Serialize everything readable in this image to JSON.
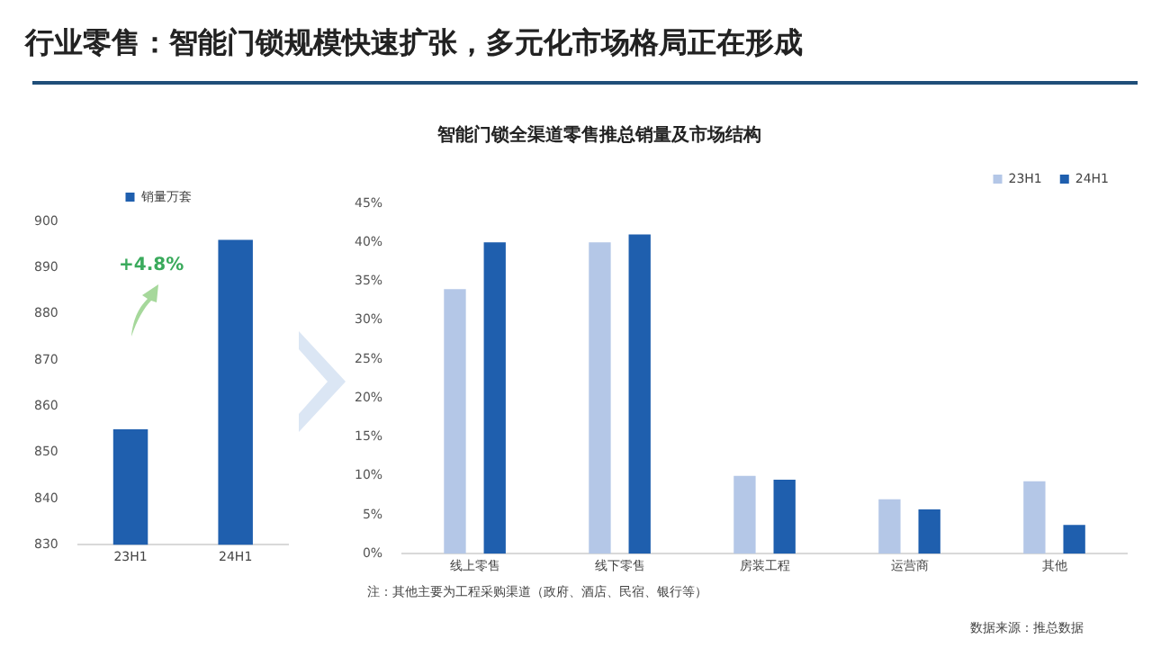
{
  "chart_data": [
    {
      "type": "bar",
      "title": "行业零售：智能门锁规模快速扩张，多元化市场格局正在形成",
      "categories": [
        "23H1",
        "24H1"
      ],
      "series": [
        {
          "name": "销量万套",
          "color": "#1f5fae",
          "values": [
            855,
            896
          ]
        }
      ],
      "ylim": [
        830,
        900
      ],
      "yticks": [
        830,
        840,
        850,
        860,
        870,
        880,
        890,
        900
      ],
      "legend": "top",
      "annotations": [
        "+4.8%"
      ]
    },
    {
      "type": "bar",
      "title": "智能门锁全渠道零售推总销量及市场结构",
      "categories": [
        "线上零售",
        "线下零售",
        "房装工程",
        "运营商",
        "其他"
      ],
      "series": [
        {
          "name": "23H1",
          "color": "#b4c7e7",
          "values": [
            34,
            40,
            10,
            7,
            9.3
          ]
        },
        {
          "name": "24H1",
          "color": "#1f5fae",
          "values": [
            40,
            41,
            9.5,
            5.7,
            3.7
          ]
        }
      ],
      "ylim": [
        0,
        45
      ],
      "yticks": [
        {
          "value": 0,
          "label": "0%"
        },
        {
          "value": 5,
          "label": "5%"
        },
        {
          "value": 10,
          "label": "10%"
        },
        {
          "value": 15,
          "label": "15%"
        },
        {
          "value": 20,
          "label": "20%"
        },
        {
          "value": 25,
          "label": "25%"
        },
        {
          "value": 30,
          "label": "30%"
        },
        {
          "value": 35,
          "label": "35%"
        },
        {
          "value": 40,
          "label": "40%"
        },
        {
          "value": 45,
          "label": "45%"
        }
      ],
      "legend": "top right",
      "annotations": [
        "注：其他主要为工程采购渠道（政府、酒店、民宿、银行等）",
        "数据来源：推总数据"
      ]
    }
  ]
}
